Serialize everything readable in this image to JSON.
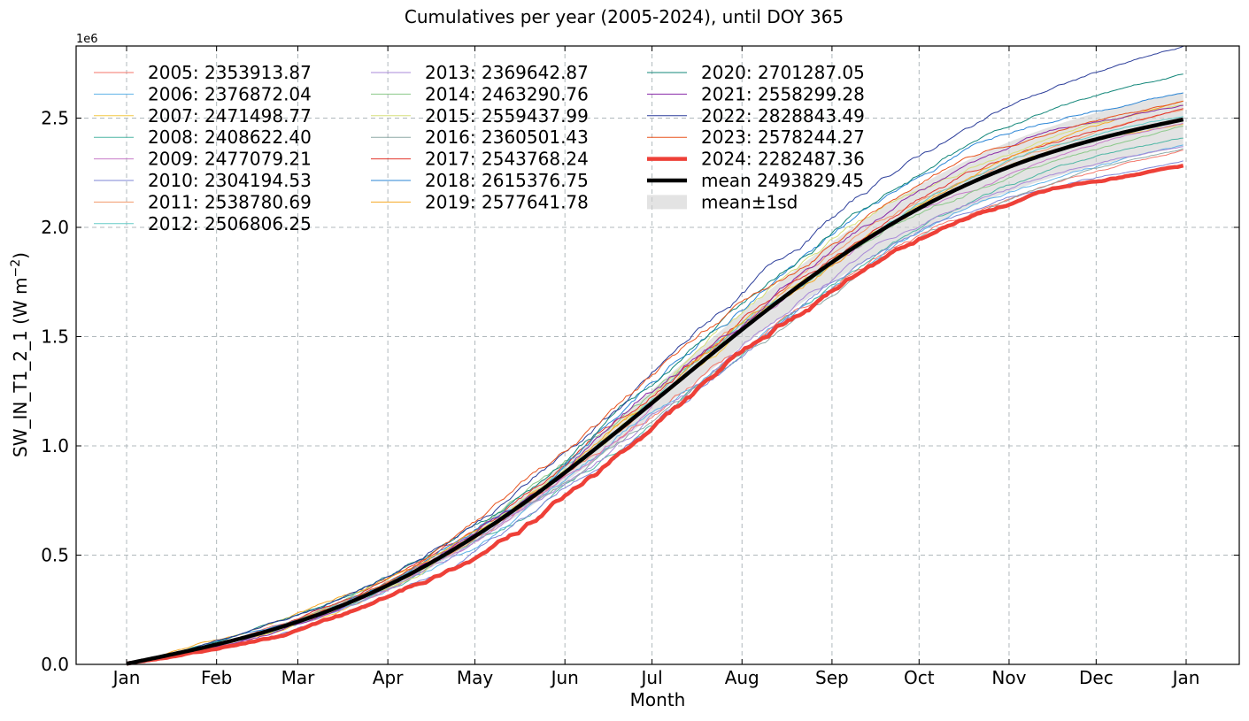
{
  "chart_data": {
    "type": "line",
    "title": "Cumulatives per year (2005-2024), until DOY 365",
    "xlabel": "Month",
    "ylabel": "SW_IN_T1_2_1  (W m",
    "ylabel_sup": "−2",
    "ylabel_close": ")",
    "y_multiplier_label": "1e6",
    "xlim": [
      1,
      366
    ],
    "ylim": [
      0,
      2830000
    ],
    "x_ticks": [
      {
        "doy": 1,
        "label": "Jan"
      },
      {
        "doy": 32,
        "label": "Feb"
      },
      {
        "doy": 60,
        "label": "Mar"
      },
      {
        "doy": 91,
        "label": "Apr"
      },
      {
        "doy": 121,
        "label": "May"
      },
      {
        "doy": 152,
        "label": "Jun"
      },
      {
        "doy": 182,
        "label": "Jul"
      },
      {
        "doy": 213,
        "label": "Aug"
      },
      {
        "doy": 244,
        "label": "Sep"
      },
      {
        "doy": 274,
        "label": "Oct"
      },
      {
        "doy": 305,
        "label": "Nov"
      },
      {
        "doy": 335,
        "label": "Dec"
      },
      {
        "doy": 366,
        "label": "Jan"
      }
    ],
    "y_ticks": [
      {
        "value": 0,
        "label": "0.0"
      },
      {
        "value": 500000,
        "label": "0.5"
      },
      {
        "value": 1000000,
        "label": "1.0"
      },
      {
        "value": 1500000,
        "label": "1.5"
      },
      {
        "value": 2000000,
        "label": "2.0"
      },
      {
        "value": 2500000,
        "label": "2.5"
      }
    ],
    "grid": true,
    "legend_position": "top-left",
    "series": [
      {
        "name": "2005",
        "label": "2005: 2353913.87",
        "total": 2353913.87,
        "color": "#f4766a",
        "width": 1
      },
      {
        "name": "2006",
        "label": "2006: 2376872.04",
        "total": 2376872.04,
        "color": "#5fb3e8",
        "width": 1
      },
      {
        "name": "2007",
        "label": "2007: 2471498.77",
        "total": 2471498.77,
        "color": "#f2c744",
        "width": 1
      },
      {
        "name": "2008",
        "label": "2008: 2408622.40",
        "total": 2408622.4,
        "color": "#4db6a4",
        "width": 1
      },
      {
        "name": "2009",
        "label": "2009: 2477079.21",
        "total": 2477079.21,
        "color": "#c77cc9",
        "width": 1
      },
      {
        "name": "2010",
        "label": "2010: 2304194.53",
        "total": 2304194.53,
        "color": "#7e86d6",
        "width": 1
      },
      {
        "name": "2011",
        "label": "2011: 2538780.69",
        "total": 2538780.69,
        "color": "#f39a6c",
        "width": 1
      },
      {
        "name": "2012",
        "label": "2012: 2506806.25",
        "total": 2506806.25,
        "color": "#63cbc7",
        "width": 1
      },
      {
        "name": "2013",
        "label": "2013: 2369642.87",
        "total": 2369642.87,
        "color": "#a98ad8",
        "width": 1
      },
      {
        "name": "2014",
        "label": "2014: 2463290.76",
        "total": 2463290.76,
        "color": "#8cc98a",
        "width": 1
      },
      {
        "name": "2015",
        "label": "2015: 2559437.99",
        "total": 2559437.99,
        "color": "#d6df7a",
        "width": 1
      },
      {
        "name": "2016",
        "label": "2016: 2360501.43",
        "total": 2360501.43,
        "color": "#8da9a6",
        "width": 1
      },
      {
        "name": "2017",
        "label": "2017: 2543768.24",
        "total": 2543768.24,
        "color": "#e3342c",
        "width": 1
      },
      {
        "name": "2018",
        "label": "2018: 2615376.75",
        "total": 2615376.75,
        "color": "#2a85d6",
        "width": 1
      },
      {
        "name": "2019",
        "label": "2019: 2577641.78",
        "total": 2577641.78,
        "color": "#f4a825",
        "width": 1
      },
      {
        "name": "2020",
        "label": "2020: 2701287.05",
        "total": 2701287.05,
        "color": "#13877a",
        "width": 1
      },
      {
        "name": "2021",
        "label": "2021: 2558299.28",
        "total": 2558299.28,
        "color": "#8a2aa8",
        "width": 1
      },
      {
        "name": "2022",
        "label": "2022: 2828843.49",
        "total": 2828843.49,
        "color": "#2b3d9a",
        "width": 1
      },
      {
        "name": "2023",
        "label": "2023: 2578244.27",
        "total": 2578244.27,
        "color": "#e8531e",
        "width": 1
      },
      {
        "name": "2024",
        "label": "2024: 2282487.36",
        "total": 2282487.36,
        "color": "#ee4038",
        "width": 4.5
      }
    ],
    "mean": {
      "label": "mean 2493829.45",
      "total": 2493829.45,
      "color": "#000000",
      "width": 4.5
    },
    "band": {
      "label": "mean±1sd",
      "sd_total": 125000,
      "color": "#d0d0d0"
    }
  }
}
